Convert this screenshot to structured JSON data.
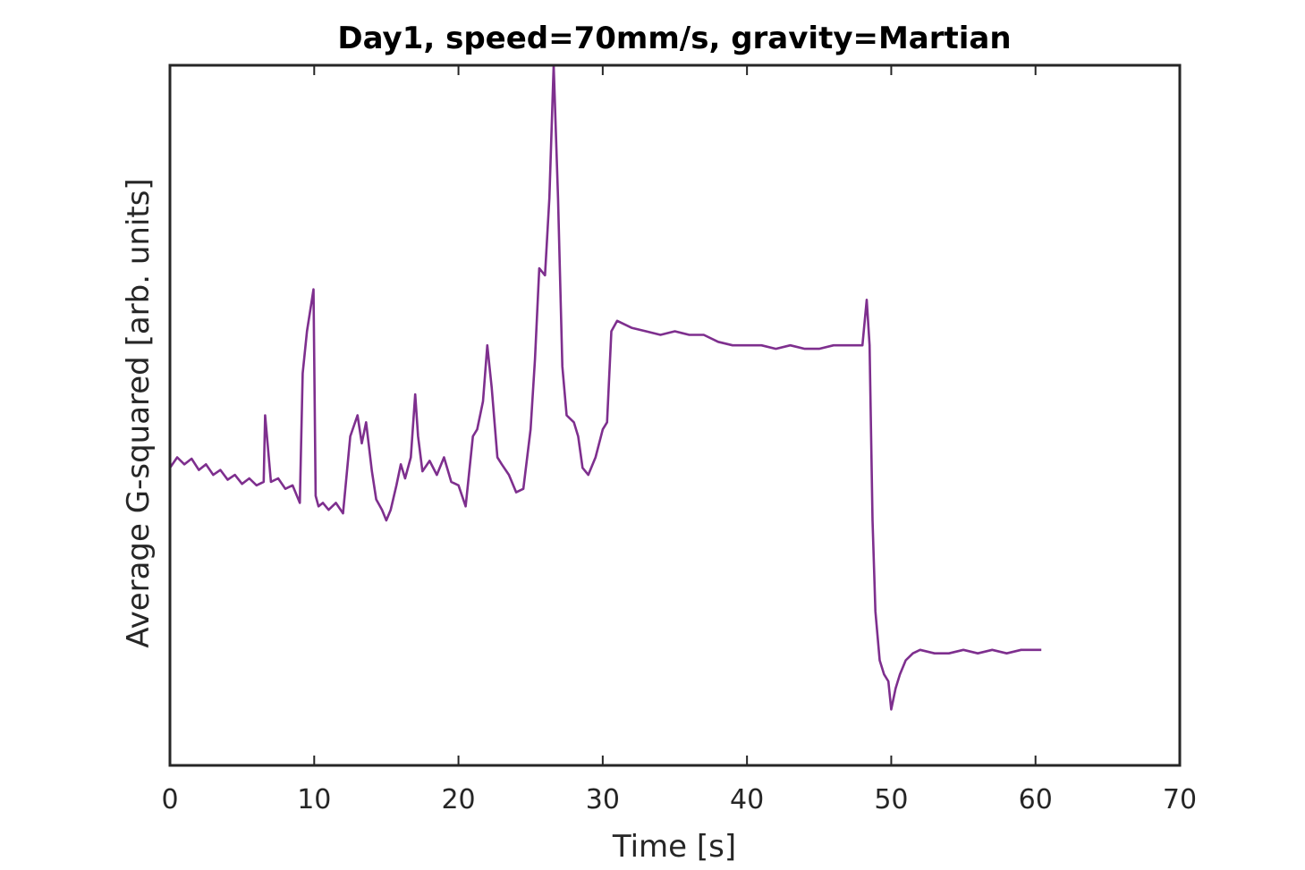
{
  "chart_data": {
    "type": "line",
    "title": "Day1, speed=70mm/s, gravity=Martian",
    "xlabel": "Time [s]",
    "ylabel": "Average G-squared [arb. units]",
    "xlim": [
      0,
      70
    ],
    "ylim": [
      0,
      100
    ],
    "y_ticks_shown": false,
    "grid": false,
    "x_ticks": [
      "0",
      "10",
      "20",
      "30",
      "40",
      "50",
      "60",
      "70"
    ],
    "series": [
      {
        "color": "#7e2f8e",
        "x": [
          0,
          0.5,
          1,
          1.5,
          2,
          2.5,
          3,
          3.5,
          4,
          4.5,
          5,
          5.5,
          6,
          6.5,
          6.6,
          7,
          7.5,
          8,
          8.5,
          9,
          9.2,
          9.5,
          9.8,
          9.95,
          10.1,
          10.3,
          10.6,
          11,
          11.5,
          12,
          12.5,
          13,
          13.3,
          13.6,
          14,
          14.3,
          14.7,
          15,
          15.3,
          15.7,
          16,
          16.3,
          16.7,
          17,
          17.2,
          17.5,
          18,
          18.5,
          19,
          19.5,
          20,
          20.5,
          21,
          21.3,
          21.7,
          22,
          22.3,
          22.7,
          23,
          23.5,
          24,
          24.5,
          25,
          25.3,
          25.6,
          26,
          26.3,
          26.6,
          26.9,
          27.2,
          27.5,
          28,
          28.3,
          28.6,
          29,
          29.5,
          30,
          30.3,
          30.6,
          31,
          32,
          33,
          34,
          35,
          36,
          37,
          38,
          39,
          40,
          41,
          42,
          43,
          44,
          45,
          46,
          47,
          48,
          48.3,
          48.5,
          48.7,
          48.9,
          49.2,
          49.5,
          49.8,
          50,
          50.3,
          50.6,
          51,
          51.5,
          52,
          53,
          54,
          55,
          56,
          57,
          58,
          59,
          60,
          60.4
        ],
        "y": [
          42.5,
          44,
          43,
          43.8,
          42.2,
          43,
          41.5,
          42.2,
          40.8,
          41.5,
          40.2,
          41,
          40,
          40.5,
          50,
          40.5,
          41,
          39.5,
          40,
          37.5,
          56,
          62,
          66,
          68,
          38.5,
          37,
          37.5,
          36.5,
          37.5,
          36,
          47,
          50,
          46,
          49,
          42,
          38,
          36.5,
          35,
          36.5,
          40,
          43,
          41,
          44,
          53,
          47,
          42,
          43.5,
          41.5,
          44,
          40.5,
          40,
          37,
          47,
          48,
          52,
          60,
          54,
          44,
          43,
          41.5,
          39,
          39.5,
          48,
          58,
          71,
          70,
          81,
          100,
          81,
          57,
          50,
          49,
          47,
          42.5,
          41.5,
          44,
          48,
          49,
          62,
          63.5,
          62.5,
          62,
          61.5,
          62,
          61.5,
          61.5,
          60.5,
          60,
          60,
          60,
          59.5,
          60,
          59.5,
          59.5,
          60,
          60,
          60,
          66.5,
          60,
          35,
          22,
          15,
          13,
          12,
          8,
          11,
          13,
          15,
          16,
          16.5,
          16,
          16,
          16.5,
          16,
          16.5,
          16,
          16.5,
          16.5,
          16.5
        ]
      }
    ]
  }
}
